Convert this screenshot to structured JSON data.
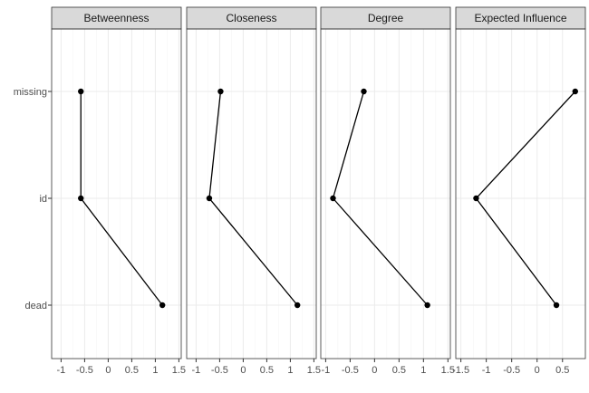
{
  "chart_data": {
    "type": "line",
    "layout": "faceted",
    "categories": [
      "missing",
      "id",
      "dead"
    ],
    "panels": [
      {
        "title": "Betweenness",
        "values": [
          -0.58,
          -0.58,
          1.15
        ],
        "xlim": [
          -1.2,
          1.55
        ],
        "xticks": [
          -1,
          -0.5,
          0,
          0.5,
          1,
          1.5
        ],
        "xtick_labels": [
          "-1",
          "-0.5",
          "0",
          "0.5",
          "1",
          "1.5"
        ]
      },
      {
        "title": "Closeness",
        "values": [
          -0.48,
          -0.72,
          1.15
        ],
        "xlim": [
          -1.2,
          1.55
        ],
        "xticks": [
          -1,
          -0.5,
          0,
          0.5,
          1,
          1.5
        ],
        "xtick_labels": [
          "-1",
          "-0.5",
          "0",
          "0.5",
          "1",
          "1.5"
        ]
      },
      {
        "title": "Degree",
        "values": [
          -0.22,
          -0.85,
          1.08
        ],
        "xlim": [
          -1.1,
          1.55
        ],
        "xticks": [
          -1,
          -0.5,
          0,
          0.5,
          1,
          1.5
        ],
        "xtick_labels": [
          "-1",
          "-0.5",
          "0",
          "0.5",
          "1",
          "1.5"
        ]
      },
      {
        "title": "Expected Influence",
        "values": [
          0.75,
          -1.2,
          0.38
        ],
        "xlim": [
          -1.6,
          0.95
        ],
        "xticks": [
          -1.5,
          -1,
          -0.5,
          0,
          0.5
        ],
        "xtick_labels": [
          "-1.5",
          "-1",
          "-0.5",
          "0",
          "0.5"
        ]
      }
    ],
    "grid": true,
    "xlabel": "",
    "ylabel": ""
  },
  "colors": {
    "background": "#ffffff",
    "panel_border": "#333333",
    "strip_fill": "#d9d9d9",
    "grid_major": "#ebebeb",
    "grid_minor": "#f5f5f5",
    "line": "#000000",
    "point": "#000000",
    "tick_text": "#4d4d4d"
  }
}
